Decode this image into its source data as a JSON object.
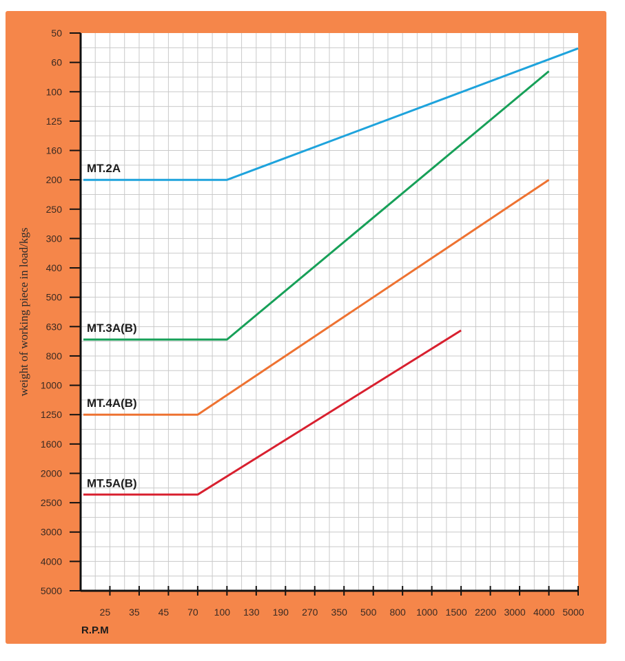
{
  "chart_data": {
    "type": "line",
    "title": "",
    "xlabel": "R.P.M",
    "ylabel": "weight of working piece in load/kgs",
    "x_ticks": [
      "25",
      "35",
      "45",
      "70",
      "100",
      "130",
      "190",
      "270",
      "350",
      "500",
      "800",
      "1000",
      "1500",
      "2200",
      "3000",
      "4000",
      "5000"
    ],
    "y_ticks": [
      "50",
      "60",
      "100",
      "125",
      "160",
      "200",
      "250",
      "300",
      "400",
      "500",
      "630",
      "800",
      "1000",
      "1250",
      "1600",
      "2000",
      "2500",
      "3000",
      "4000",
      "5000"
    ],
    "grid": true,
    "legend": "labels placed above each series at left",
    "series": [
      {
        "name": "MT.2A",
        "color": "#1ea3dc",
        "points": [
          [
            "start",
            "200"
          ],
          [
            "100",
            "200"
          ],
          [
            "5000",
            "55"
          ]
        ]
      },
      {
        "name": "MT.3A(B)",
        "color": "#17a058",
        "points": [
          [
            "start",
            "700"
          ],
          [
            "100",
            "700"
          ],
          [
            "4000",
            "70"
          ]
        ]
      },
      {
        "name": "MT.4A(B)",
        "color": "#ee7231",
        "points": [
          [
            "start",
            "1250"
          ],
          [
            "70",
            "1250"
          ],
          [
            "4000",
            "200"
          ]
        ]
      },
      {
        "name": "MT.5A(B)",
        "color": "#d8202f",
        "points": [
          [
            "start",
            "2350"
          ],
          [
            "70",
            "2350"
          ],
          [
            "1500",
            "650"
          ]
        ]
      }
    ]
  }
}
